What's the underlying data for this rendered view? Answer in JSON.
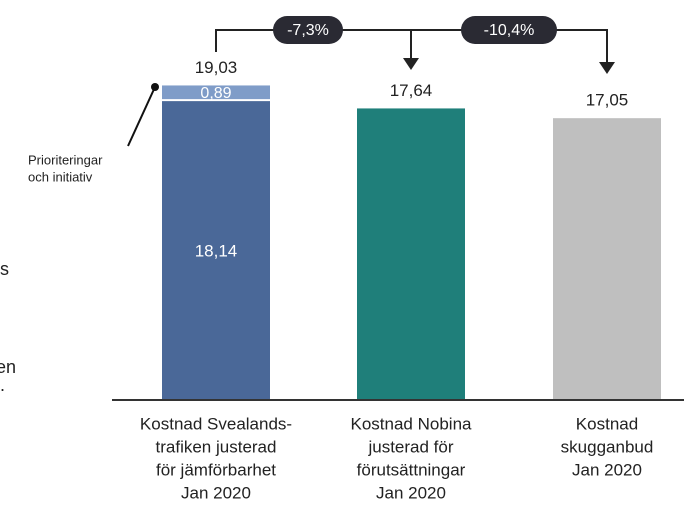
{
  "chart_data": {
    "type": "bar",
    "categories": [
      [
        "Kostnad Svealands-",
        "trafiken justerad",
        "för jämförbarhet",
        "Jan 2020"
      ],
      [
        "Kostnad Nobina",
        "justerad för",
        "förutsättningar",
        "Jan 2020"
      ],
      [
        "Kostnad",
        "skugganbud",
        "Jan 2020"
      ]
    ],
    "series": [
      {
        "values": [
          18.14,
          17.64,
          17.05
        ],
        "value_labels": [
          "18,14",
          "17,64",
          "17,05"
        ],
        "colors": [
          "#4a6898",
          "#1f7f7a",
          "#bfbfbf"
        ]
      },
      {
        "values": [
          0.89,
          null,
          null
        ],
        "value_labels": [
          "0,89",
          null,
          null
        ],
        "color": "#7f9cc8"
      }
    ],
    "total": 19.03,
    "total_label": "19,03",
    "ylim": [
      0,
      24.2
    ],
    "changes": [
      "-7,3%",
      "-10,4%"
    ],
    "callout": [
      "Prioriteringar",
      "och initiativ"
    ],
    "cropped_text": [
      "s",
      "en",
      "."
    ]
  }
}
